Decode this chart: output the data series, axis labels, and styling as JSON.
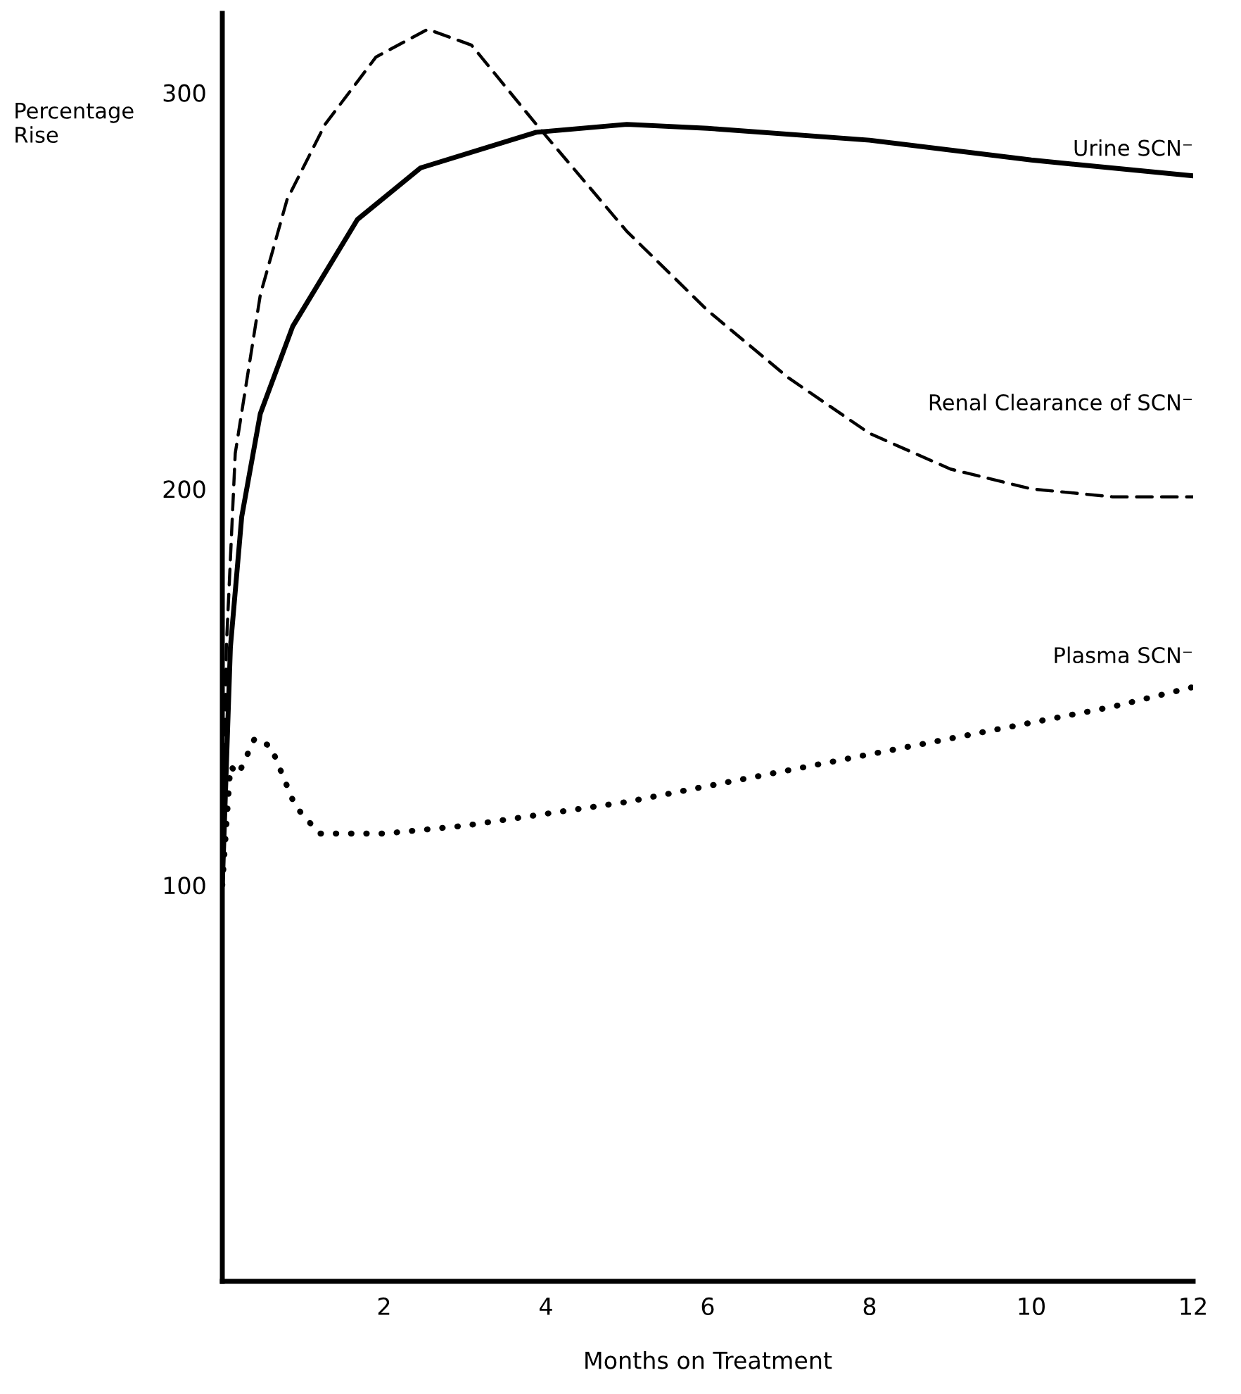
{
  "chart_data": {
    "type": "line",
    "xlabel": "Months on Treatment",
    "ylabel": "Percentage\nRise",
    "xlim": [
      0,
      12
    ],
    "ylim": [
      0,
      320
    ],
    "xticks": [
      2,
      4,
      6,
      8,
      10,
      12
    ],
    "yticks": [
      100,
      200,
      300
    ],
    "grid": false,
    "legend": false,
    "marker": "none",
    "series": [
      {
        "name": "Urine SCN⁻",
        "color": "#000000",
        "line_style": "solid",
        "x": [
          0,
          0.1,
          0.24,
          0.47,
          0.87,
          1.67,
          2.45,
          3.88,
          5,
          6,
          8,
          10,
          12
        ],
        "values": [
          100,
          160,
          193,
          219,
          241,
          268,
          281,
          290,
          292,
          291,
          288,
          283,
          279
        ]
      },
      {
        "name": "Renal Clearance of SCN⁻",
        "color": "#000000",
        "line_style": "dashed",
        "x": [
          0,
          0.05,
          0.16,
          0.47,
          0.8,
          1.27,
          1.9,
          2.54,
          3.08,
          3.88,
          5,
          6,
          7,
          8,
          9,
          10,
          11,
          12
        ],
        "values": [
          100,
          160,
          209,
          249,
          273,
          292,
          309,
          316,
          312,
          292,
          265,
          245,
          228,
          214,
          205,
          200,
          198,
          198
        ]
      },
      {
        "name": "Plasma SCN⁻",
        "color": "#000000",
        "line_style": "dotted",
        "x": [
          0,
          0.1,
          0.2,
          0.4,
          0.6,
          0.9,
          1.2,
          2,
          3,
          4,
          5,
          6,
          7,
          8,
          9,
          10,
          11,
          12
        ],
        "values": [
          100,
          130,
          128,
          137,
          135,
          120,
          113,
          113,
          115,
          118,
          121,
          125,
          129,
          133,
          137,
          141,
          145,
          150
        ]
      }
    ]
  }
}
